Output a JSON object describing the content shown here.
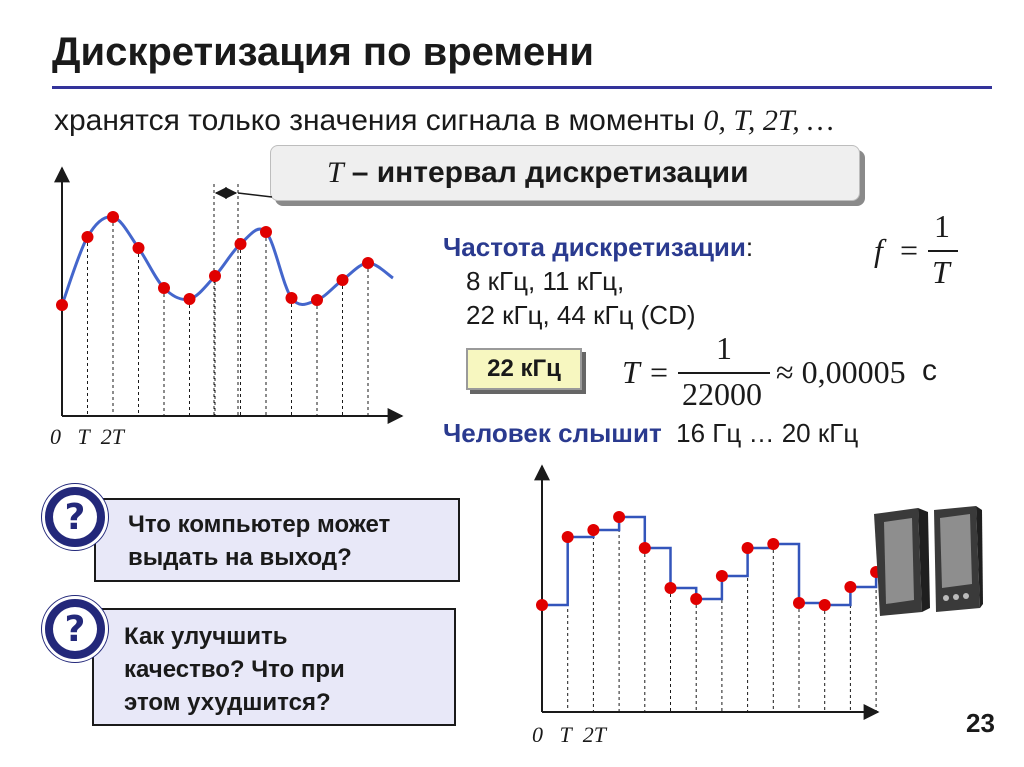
{
  "slide": {
    "title": "Дискретизация по времени",
    "subtitle_prefix": "хранятся только значения сигнала в моменты ",
    "subtitle_moments": "0, T, 2T, …",
    "page_number": "23"
  },
  "callout": {
    "symbol": "T",
    "text": "– интервал дискретизации"
  },
  "frequency": {
    "heading": "Частота дискретизации",
    "colon": ":",
    "line1": "8 кГц, 11 кГц,",
    "line2": "22 кГц, 44 кГц (CD)",
    "formula_f": "f",
    "formula_eq": "=",
    "formula_num": "1",
    "formula_den": "T",
    "selected": "22 кГц",
    "period_T": "T",
    "period_eq": "=",
    "period_num": "1",
    "period_den": "22000",
    "period_approx": "≈ 0,00005",
    "period_unit": "с"
  },
  "hearing": {
    "label": "Человек слышит",
    "range": "16 Гц … 20 кГц"
  },
  "questions": [
    {
      "icon": "?",
      "text_line1": "Что компьютер может",
      "text_line2": "выдать на выход?"
    },
    {
      "icon": "?",
      "text_line1": "Как улучшить",
      "text_line2": "качество? Что при",
      "text_line3": "этом ухудшится?"
    }
  ],
  "graph_top": {
    "origin_label": "0",
    "t_label": "T",
    "t2_label": "2T",
    "samples": [
      0.05,
      0.73,
      0.93,
      0.62,
      0.22,
      0.11,
      0.34,
      0.66,
      0.78,
      0.12,
      0.1,
      0.3,
      0.47
    ]
  },
  "graph_bottom": {
    "origin_label": "0",
    "t_label": "T",
    "t2_label": "2T",
    "samples": [
      0.05,
      0.73,
      0.8,
      0.93,
      0.62,
      0.22,
      0.11,
      0.34,
      0.62,
      0.66,
      0.07,
      0.05,
      0.23,
      0.38
    ]
  },
  "colors": {
    "accent_blue": "#2a3a8f",
    "sample_red": "#e00000",
    "curve_blue": "#4466cc",
    "question_box_bg": "#e8e8f8",
    "highlight_box_bg": "#f7f7c0"
  },
  "icons": {
    "question": "question-circle-icon",
    "speakers": "speakers-image"
  }
}
